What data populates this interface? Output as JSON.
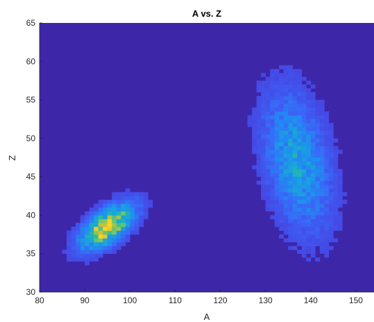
{
  "chart_data": {
    "type": "heatmap",
    "title": "A vs. Z",
    "xlabel": "A",
    "ylabel": "Z",
    "xlim": [
      80,
      154
    ],
    "ylim": [
      30,
      65
    ],
    "xticks": [
      "80",
      "90",
      "100",
      "110",
      "120",
      "130",
      "140",
      "150"
    ],
    "yticks": [
      "30",
      "35",
      "40",
      "45",
      "50",
      "55",
      "60",
      "65"
    ],
    "bin_width": 1,
    "colormap": [
      "#3e26a8",
      "#4741e0",
      "#3a68f8",
      "#1f8ef0",
      "#1aa8d6",
      "#24bca0",
      "#7fc860",
      "#d8be30",
      "#f9d42a"
    ],
    "background_color": "#3e26a8",
    "clusters": [
      {
        "center_A": 95,
        "center_Z": 38.5,
        "sigma_A": 3.6,
        "sigma_Z": 1.8,
        "correlation": 0.6,
        "peak_level": 0.95
      },
      {
        "center_A": 137,
        "center_Z": 47,
        "sigma_A": 4.5,
        "sigma_Z": 5.5,
        "correlation": -0.35,
        "peak_level": 0.4
      }
    ]
  }
}
